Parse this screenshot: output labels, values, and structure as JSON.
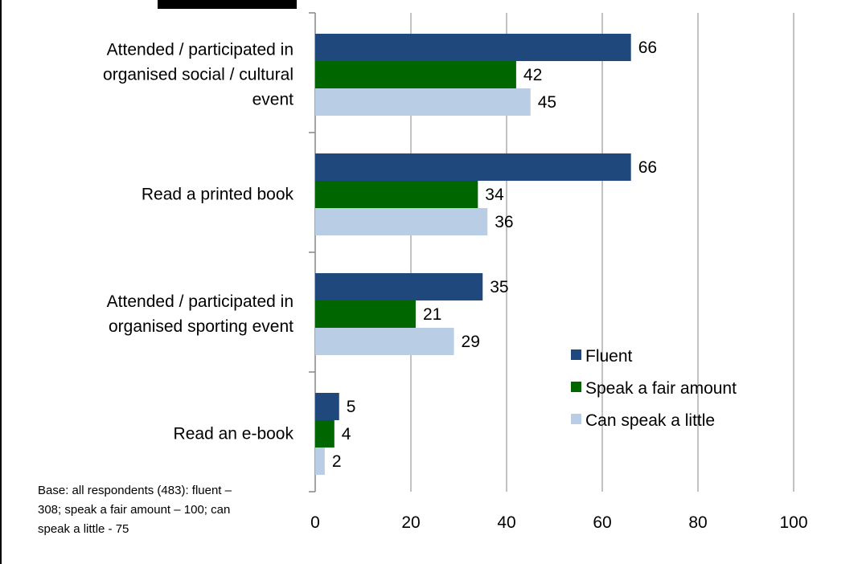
{
  "chart_data": {
    "type": "bar",
    "orientation": "horizontal",
    "categories": [
      [
        "Attended / participated in",
        "organised social / cultural",
        "event"
      ],
      [
        "Read a printed book"
      ],
      [
        "Attended / participated in",
        "organised sporting event"
      ],
      [
        "Read an e-book"
      ]
    ],
    "series": [
      {
        "name": "Fluent",
        "color": "#1F497D",
        "values": [
          66,
          66,
          35,
          5
        ]
      },
      {
        "name": "Speak a fair amount",
        "color": "#006600",
        "values": [
          42,
          34,
          21,
          4
        ]
      },
      {
        "name": "Can speak a little",
        "color": "#B9CDE5",
        "values": [
          45,
          36,
          29,
          2
        ]
      }
    ],
    "xlim": [
      0,
      100
    ],
    "xticks": [
      0,
      20,
      40,
      60,
      80,
      100
    ],
    "grid": true,
    "legend_position": "right",
    "note": [
      "Base: all respondents (483): fluent –",
      "308; speak a fair amount – 100; can",
      "speak a little -  75"
    ]
  }
}
